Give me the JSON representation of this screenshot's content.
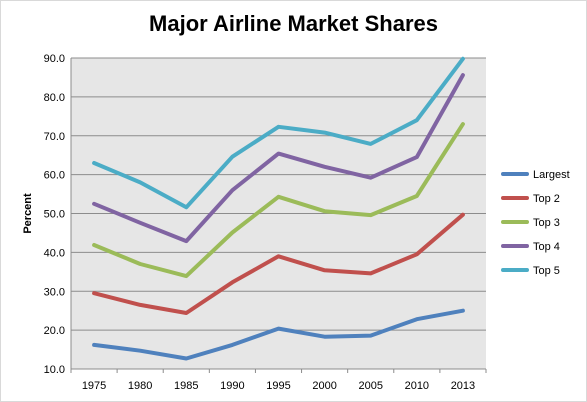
{
  "chart_data": {
    "type": "line",
    "title": "Major Airline Market Shares",
    "xlabel": "",
    "ylabel": "Percent",
    "x": [
      "1975",
      "1980",
      "1985",
      "1990",
      "1995",
      "2000",
      "2005",
      "2010",
      "2013"
    ],
    "ylim": [
      10,
      90
    ],
    "yticks": [
      "10.0",
      "20.0",
      "30.0",
      "40.0",
      "50.0",
      "60.0",
      "70.0",
      "80.0",
      "90.0"
    ],
    "grid": true,
    "legend": "right",
    "series": [
      {
        "name": "Largest",
        "color": "#4f81bd",
        "values": [
          16.2,
          14.7,
          12.7,
          16.2,
          20.4,
          18.3,
          18.6,
          22.8,
          25.0
        ]
      },
      {
        "name": "Top 2",
        "color": "#c0504d",
        "values": [
          29.5,
          26.5,
          24.4,
          32.3,
          39.0,
          35.4,
          34.6,
          39.5,
          49.7
        ]
      },
      {
        "name": "Top 3",
        "color": "#9bbb59",
        "values": [
          41.9,
          37.0,
          33.9,
          45.1,
          54.3,
          50.6,
          49.6,
          54.5,
          73.0
        ]
      },
      {
        "name": "Top 4",
        "color": "#8064a2",
        "values": [
          52.5,
          47.6,
          42.9,
          56.0,
          65.4,
          62.0,
          59.2,
          64.5,
          85.6
        ]
      },
      {
        "name": "Top 5",
        "color": "#4bacc6",
        "values": [
          63.0,
          58.0,
          51.6,
          64.6,
          72.3,
          70.8,
          67.9,
          74.0,
          89.8
        ]
      }
    ]
  }
}
